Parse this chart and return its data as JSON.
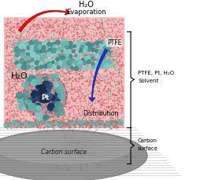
{
  "fig_width": 2.59,
  "fig_height": 2.29,
  "dpi": 100,
  "bg_color": "#ffffff",
  "labels": {
    "h2o_evap_1": "H₂O",
    "h2o_evap_2": "Evaporation",
    "h2o_bulk": "H₂O",
    "ptfe_label": "PTFE",
    "dist_label": "Distribution",
    "pt_label": "Pt",
    "right_top_1": "PTFE, Pt, H₂O",
    "right_top_2": "Solvent",
    "right_bot_1": "Carbon",
    "right_bot_2": "surface",
    "carbon_surface": "Carbon surface"
  },
  "red_dot_color": "#dd4444",
  "teal_dot_color": "#60b8b0",
  "teal_dark": "#3a8a88",
  "gray_carbon": "#909090",
  "pt_cluster_color": "#2a4060",
  "blue_arrow_color": "#2233bb",
  "red_arrow_color": "#dd1111",
  "box_bg": "#f0c0c0",
  "bx": 5,
  "by": 22,
  "bw": 152,
  "bh": 140
}
